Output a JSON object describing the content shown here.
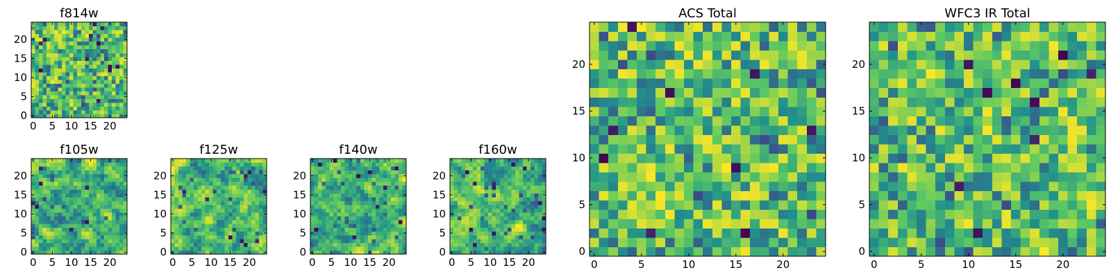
{
  "figure": {
    "description_type": "image-grid",
    "colormap": "viridis",
    "colormap_stops": [
      "#440154",
      "#3b528b",
      "#21918c",
      "#5ec962",
      "#fde725"
    ]
  },
  "chart_data": [
    {
      "id": "f814w",
      "type": "heatmap",
      "title": "f814w",
      "grid": [
        25,
        25
      ],
      "xticks": [
        "0",
        "5",
        "10",
        "15",
        "20"
      ],
      "yticks": [
        "0",
        "5",
        "10",
        "15",
        "20"
      ],
      "seed": 11,
      "smooth": 0.15,
      "dark_spots": 12
    },
    {
      "id": "f105w",
      "type": "heatmap",
      "title": "f105w",
      "grid": [
        25,
        25
      ],
      "xticks": [
        "0",
        "5",
        "10",
        "15",
        "20"
      ],
      "yticks": [
        "0",
        "5",
        "10",
        "15",
        "20"
      ],
      "seed": 23,
      "smooth": 0.55,
      "dark_spots": 7
    },
    {
      "id": "f125w",
      "type": "heatmap",
      "title": "f125w",
      "grid": [
        25,
        25
      ],
      "xticks": [
        "0",
        "5",
        "10",
        "15",
        "20"
      ],
      "yticks": [
        "0",
        "5",
        "10",
        "15",
        "20"
      ],
      "seed": 37,
      "smooth": 0.55,
      "dark_spots": 9
    },
    {
      "id": "f140w",
      "type": "heatmap",
      "title": "f140w",
      "grid": [
        25,
        25
      ],
      "xticks": [
        "0",
        "5",
        "10",
        "15",
        "20"
      ],
      "yticks": [
        "0",
        "5",
        "10",
        "15",
        "20"
      ],
      "seed": 41,
      "smooth": 0.55,
      "dark_spots": 10
    },
    {
      "id": "f160w",
      "type": "heatmap",
      "title": "f160w",
      "grid": [
        25,
        25
      ],
      "xticks": [
        "0",
        "5",
        "10",
        "15",
        "20"
      ],
      "yticks": [
        "0",
        "5",
        "10",
        "15",
        "20"
      ],
      "seed": 53,
      "smooth": 0.55,
      "dark_spots": 12
    },
    {
      "id": "acs_total",
      "type": "heatmap",
      "title": "ACS Total",
      "grid": [
        25,
        25
      ],
      "xticks": [
        "0",
        "5",
        "10",
        "15",
        "20"
      ],
      "yticks": [
        "0",
        "5",
        "10",
        "15",
        "20"
      ],
      "seed": 67,
      "smooth": 0.1,
      "dark_spots": 9
    },
    {
      "id": "wfc3_ir_total",
      "type": "heatmap",
      "title": "WFC3 IR Total",
      "grid": [
        25,
        25
      ],
      "xticks": [
        "0",
        "5",
        "10",
        "15",
        "20"
      ],
      "yticks": [
        "0",
        "5",
        "10",
        "15",
        "20"
      ],
      "seed": 79,
      "smooth": 0.1,
      "dark_spots": 9
    }
  ]
}
